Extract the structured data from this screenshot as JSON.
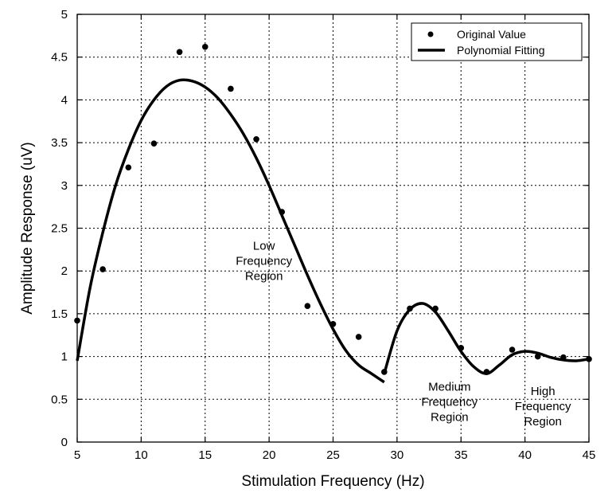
{
  "chart_data": {
    "type": "scatter",
    "xlabel": "Stimulation Frequency (Hz)",
    "ylabel": "Amplitude Response (uV)",
    "xlim": [
      5,
      45
    ],
    "ylim": [
      0,
      5
    ],
    "x_ticks": [
      5,
      10,
      15,
      20,
      25,
      30,
      35,
      40,
      45
    ],
    "y_ticks": [
      0,
      0.5,
      1,
      1.5,
      2,
      2.5,
      3,
      3.5,
      4,
      4.5,
      5
    ],
    "x_tick_labels": [
      "5",
      "10",
      "15",
      "20",
      "25",
      "30",
      "35",
      "40",
      "45"
    ],
    "y_tick_labels": [
      "0",
      "0.5",
      "1",
      "1.5",
      "2",
      "2.5",
      "3",
      "3.5",
      "4",
      "4.5",
      "5"
    ],
    "grid": true,
    "legend_position": "top-right",
    "series": [
      {
        "name": "Original Value",
        "kind": "markers",
        "color": "#000000",
        "points": [
          [
            5,
            1.42
          ],
          [
            7,
            2.02
          ],
          [
            9,
            3.21
          ],
          [
            11,
            3.49
          ],
          [
            13,
            4.56
          ],
          [
            15,
            4.62
          ],
          [
            17,
            4.13
          ],
          [
            19,
            3.54
          ],
          [
            21,
            2.69
          ],
          [
            23,
            1.59
          ],
          [
            25,
            1.38
          ],
          [
            27,
            1.23
          ],
          [
            29,
            0.82
          ],
          [
            31,
            1.56
          ],
          [
            33,
            1.56
          ],
          [
            35,
            1.1
          ],
          [
            37,
            0.82
          ],
          [
            39,
            1.08
          ],
          [
            41,
            1.0
          ],
          [
            43,
            0.99
          ],
          [
            45,
            0.97
          ]
        ]
      },
      {
        "name": "Polynomial Fitting",
        "kind": "lines",
        "color": "#000000",
        "segments": [
          [
            [
              5,
              0.95
            ],
            [
              6,
              1.8
            ],
            [
              7,
              2.45
            ],
            [
              8,
              3.0
            ],
            [
              9,
              3.42
            ],
            [
              10,
              3.76
            ],
            [
              11,
              4.0
            ],
            [
              12,
              4.16
            ],
            [
              13,
              4.23
            ],
            [
              14,
              4.22
            ],
            [
              15,
              4.15
            ],
            [
              16,
              4.02
            ],
            [
              17,
              3.83
            ],
            [
              18,
              3.6
            ],
            [
              19,
              3.32
            ],
            [
              20,
              3.0
            ],
            [
              21,
              2.65
            ],
            [
              22,
              2.3
            ],
            [
              23,
              1.95
            ],
            [
              24,
              1.62
            ],
            [
              25,
              1.32
            ],
            [
              26,
              1.07
            ],
            [
              27,
              0.9
            ],
            [
              28,
              0.8
            ],
            [
              29,
              0.7
            ]
          ],
          [
            [
              29,
              0.8
            ],
            [
              30,
              1.3
            ],
            [
              31,
              1.55
            ],
            [
              32,
              1.62
            ],
            [
              33,
              1.52
            ],
            [
              34,
              1.3
            ],
            [
              35,
              1.06
            ],
            [
              36,
              0.88
            ],
            [
              37,
              0.8
            ],
            [
              38,
              0.9
            ],
            [
              39,
              1.02
            ],
            [
              40,
              1.06
            ],
            [
              41,
              1.04
            ],
            [
              42,
              0.99
            ],
            [
              43,
              0.96
            ],
            [
              44,
              0.95
            ],
            [
              45,
              0.97
            ]
          ]
        ]
      }
    ],
    "annotations": [
      {
        "lines": [
          "Low",
          "Frequency",
          "Region"
        ],
        "x": 19.6,
        "y": 2.25
      },
      {
        "lines": [
          "Medium",
          "Frequency",
          "Region"
        ],
        "x": 34.1,
        "y": 0.6
      },
      {
        "lines": [
          "High",
          "Frequency",
          "Region"
        ],
        "x": 41.4,
        "y": 0.55
      }
    ]
  }
}
